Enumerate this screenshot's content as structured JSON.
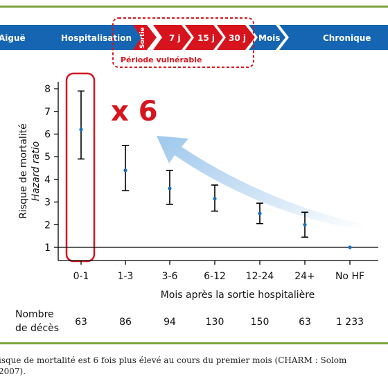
{
  "banner": {
    "phases": [
      "Aiguë",
      "Hospitalisation",
      "Sortie",
      "7 j",
      "15 j",
      "30 j",
      "Mois",
      "Chronique"
    ],
    "vulnerable_label": "Période vulnérable",
    "colors": {
      "blue": "#1565b2",
      "red": "#d7141e",
      "gray": "#8090a8"
    }
  },
  "annotation": {
    "text": "x 6",
    "color": "#d7141e"
  },
  "chart_data": {
    "type": "scatter",
    "title": "",
    "xlabel": "Mois après la sortie hospitalière",
    "ylabel": "Risque de mortalité",
    "ylabel2": "Hazard ratio",
    "categories": [
      "0-1",
      "1-3",
      "3-6",
      "6-12",
      "12-24",
      "24+",
      "No HF"
    ],
    "values": [
      6.2,
      4.4,
      3.6,
      3.15,
      2.5,
      2.0,
      1.0
    ],
    "err_low": [
      4.9,
      3.5,
      2.9,
      2.6,
      2.05,
      1.45,
      1.0
    ],
    "err_high": [
      7.9,
      5.5,
      4.4,
      3.75,
      2.95,
      2.55,
      1.0
    ],
    "yticks": [
      1,
      2,
      3,
      4,
      5,
      6,
      7,
      8
    ],
    "ylim": [
      0.8,
      8.4
    ],
    "grid": false,
    "point_color": "#1a6fc0"
  },
  "deaths": {
    "label_line1": "Nombre",
    "label_line2": "de décès",
    "counts": [
      "63",
      "86",
      "94",
      "130",
      "150",
      "63",
      "1 233"
    ]
  },
  "caption": {
    "line1": "isque de mortalité est 6 fois plus élevé au cours du premier mois (CHARM : Solom",
    "line2": "2007)."
  }
}
